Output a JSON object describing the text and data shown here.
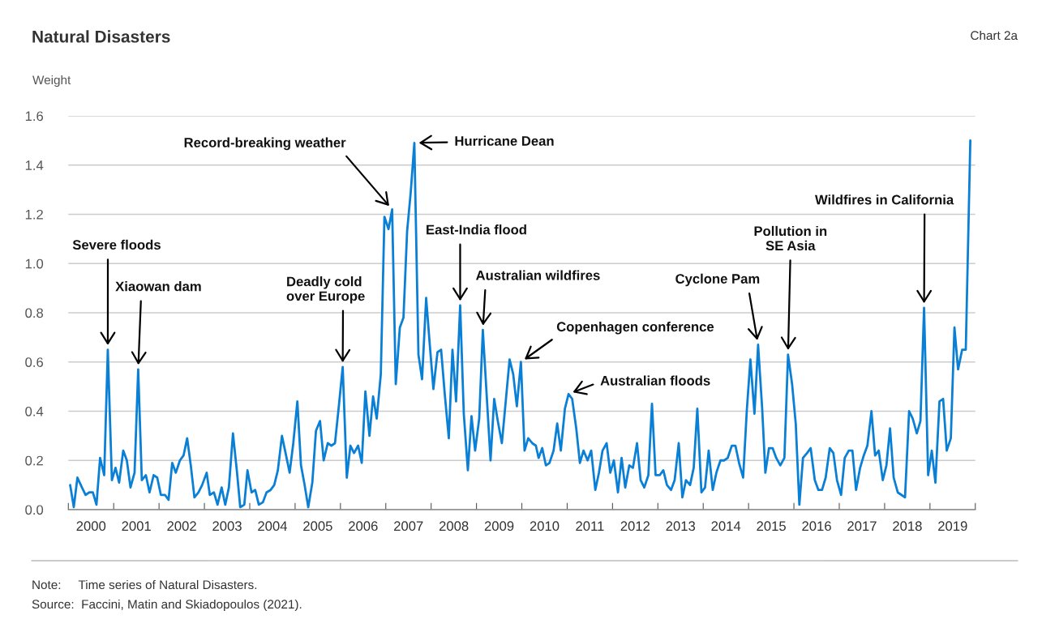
{
  "chart_data": {
    "type": "line",
    "title": "Natural Disasters",
    "subtitle": "Chart 2a",
    "ylabel": "Weight",
    "x": [
      2000.04,
      2000.12,
      2000.2,
      2000.3,
      2000.38,
      2000.46,
      2000.54,
      2000.62,
      2000.7,
      2000.79,
      2000.87,
      2000.96,
      2001.04,
      2001.12,
      2001.21,
      2001.29,
      2001.37,
      2001.46,
      2001.54,
      2001.62,
      2001.71,
      2001.79,
      2001.88,
      2001.96,
      2002.04,
      2002.13,
      2002.21,
      2002.29,
      2002.37,
      2002.46,
      2002.54,
      2002.62,
      2002.7,
      2002.78,
      2002.87,
      2002.95,
      2003.05,
      2003.12,
      2003.21,
      2003.29,
      2003.38,
      2003.46,
      2003.54,
      2003.63,
      2003.72,
      2003.79,
      2003.88,
      2003.95,
      2004.04,
      2004.12,
      2004.2,
      2004.29,
      2004.37,
      2004.46,
      2004.54,
      2004.62,
      2004.71,
      2004.79,
      2004.88,
      2004.96,
      2005.05,
      2005.13,
      2005.21,
      2005.29,
      2005.38,
      2005.46,
      2005.55,
      2005.63,
      2005.72,
      2005.8,
      2005.88,
      2005.97,
      2006.05,
      2006.14,
      2006.22,
      2006.3,
      2006.39,
      2006.47,
      2006.55,
      2006.64,
      2006.72,
      2006.8,
      2006.89,
      2006.97,
      2007.06,
      2007.14,
      2007.22,
      2007.31,
      2007.39,
      2007.47,
      2007.55,
      2007.63,
      2007.72,
      2007.8,
      2007.89,
      2007.97,
      2008.05,
      2008.14,
      2008.22,
      2008.3,
      2008.39,
      2008.47,
      2008.55,
      2008.64,
      2008.72,
      2008.81,
      2008.89,
      2008.97,
      2009.06,
      2009.14,
      2009.22,
      2009.31,
      2009.39,
      2009.47,
      2009.56,
      2009.64,
      2009.73,
      2009.81,
      2009.89,
      2009.98,
      2010.06,
      2010.14,
      2010.23,
      2010.31,
      2010.37,
      2010.45,
      2010.53,
      2010.61,
      2010.7,
      2010.78,
      2010.86,
      2010.95,
      2011.03,
      2011.11,
      2011.2,
      2011.28,
      2011.36,
      2011.45,
      2011.53,
      2011.62,
      2011.7,
      2011.78,
      2011.87,
      2011.95,
      2012.03,
      2012.12,
      2012.2,
      2012.28,
      2012.37,
      2012.45,
      2012.54,
      2012.62,
      2012.7,
      2012.79,
      2012.87,
      2012.95,
      2013.04,
      2013.12,
      2013.2,
      2013.29,
      2013.37,
      2013.46,
      2013.54,
      2013.62,
      2013.71,
      2013.79,
      2013.87,
      2013.96,
      2014.04,
      2014.12,
      2014.21,
      2014.29,
      2014.38,
      2014.46,
      2014.54,
      2014.63,
      2014.71,
      2014.79,
      2014.88,
      2014.96,
      2015.04,
      2015.13,
      2015.21,
      2015.3,
      2015.37,
      2015.45,
      2015.53,
      2015.61,
      2015.7,
      2015.79,
      2015.87,
      2015.96,
      2016.04,
      2016.12,
      2016.2,
      2016.29,
      2016.37,
      2016.46,
      2016.54,
      2016.62,
      2016.7,
      2016.79,
      2016.87,
      2016.95,
      2017.04,
      2017.12,
      2017.21,
      2017.29,
      2017.37,
      2017.46,
      2017.54,
      2017.62,
      2017.71,
      2017.79,
      2017.87,
      2017.96,
      2018.04,
      2018.12,
      2018.2,
      2018.29,
      2018.37,
      2018.45,
      2018.54,
      2018.62,
      2018.71,
      2018.79,
      2018.87,
      2018.96,
      2019.04,
      2019.12,
      2019.21,
      2019.29,
      2019.37,
      2019.46,
      2019.54,
      2019.62,
      2019.71,
      2019.79,
      2019.89
    ],
    "series": [
      {
        "color": "#0a7fd6",
        "values": [
          0.1,
          0.01,
          0.13,
          0.09,
          0.06,
          0.07,
          0.07,
          0.02,
          0.21,
          0.14,
          0.65,
          0.12,
          0.17,
          0.11,
          0.24,
          0.2,
          0.09,
          0.15,
          0.57,
          0.12,
          0.14,
          0.07,
          0.14,
          0.13,
          0.06,
          0.06,
          0.04,
          0.19,
          0.15,
          0.2,
          0.22,
          0.29,
          0.18,
          0.05,
          0.07,
          0.1,
          0.15,
          0.06,
          0.07,
          0.02,
          0.09,
          0.02,
          0.09,
          0.31,
          0.15,
          0.01,
          0.02,
          0.16,
          0.07,
          0.08,
          0.02,
          0.03,
          0.07,
          0.08,
          0.1,
          0.16,
          0.3,
          0.23,
          0.15,
          0.27,
          0.44,
          0.18,
          0.1,
          0.01,
          0.11,
          0.32,
          0.36,
          0.2,
          0.27,
          0.26,
          0.27,
          0.43,
          0.58,
          0.13,
          0.26,
          0.23,
          0.26,
          0.19,
          0.48,
          0.3,
          0.46,
          0.37,
          0.55,
          1.19,
          1.14,
          1.22,
          0.51,
          0.74,
          0.78,
          1.13,
          1.29,
          1.49,
          0.63,
          0.53,
          0.86,
          0.67,
          0.49,
          0.64,
          0.65,
          0.47,
          0.29,
          0.65,
          0.44,
          0.83,
          0.39,
          0.16,
          0.38,
          0.24,
          0.37,
          0.73,
          0.48,
          0.2,
          0.45,
          0.36,
          0.27,
          0.43,
          0.61,
          0.55,
          0.42,
          0.6,
          0.24,
          0.29,
          0.27,
          0.26,
          0.21,
          0.25,
          0.18,
          0.19,
          0.24,
          0.35,
          0.24,
          0.41,
          0.47,
          0.45,
          0.33,
          0.19,
          0.24,
          0.2,
          0.24,
          0.08,
          0.15,
          0.24,
          0.27,
          0.15,
          0.2,
          0.07,
          0.21,
          0.09,
          0.18,
          0.17,
          0.27,
          0.12,
          0.09,
          0.14,
          0.43,
          0.14,
          0.14,
          0.16,
          0.1,
          0.08,
          0.12,
          0.27,
          0.05,
          0.12,
          0.1,
          0.17,
          0.41,
          0.07,
          0.09,
          0.24,
          0.08,
          0.15,
          0.2,
          0.2,
          0.21,
          0.26,
          0.26,
          0.19,
          0.13,
          0.4,
          0.61,
          0.39,
          0.67,
          0.41,
          0.15,
          0.25,
          0.25,
          0.21,
          0.18,
          0.21,
          0.63,
          0.51,
          0.35,
          0.02,
          0.21,
          0.23,
          0.25,
          0.12,
          0.08,
          0.08,
          0.13,
          0.25,
          0.23,
          0.12,
          0.06,
          0.21,
          0.24,
          0.24,
          0.08,
          0.17,
          0.22,
          0.26,
          0.4,
          0.22,
          0.24,
          0.12,
          0.18,
          0.33,
          0.13,
          0.07,
          0.06,
          0.05,
          0.4,
          0.37,
          0.31,
          0.36,
          0.82,
          0.14,
          0.24,
          0.11,
          0.44,
          0.45,
          0.24,
          0.29,
          0.74,
          0.57,
          0.65,
          0.65,
          1.5
        ]
      }
    ],
    "xlim": [
      2000,
      2020
    ],
    "xticks": [
      {
        "value": 2000,
        "label": null
      },
      {
        "value": 2000.5,
        "label": "2000"
      },
      {
        "value": 2001,
        "label": null
      },
      {
        "value": 2001.5,
        "label": "2001"
      },
      {
        "value": 2002,
        "label": null
      },
      {
        "value": 2002.5,
        "label": "2002"
      },
      {
        "value": 2003,
        "label": null
      },
      {
        "value": 2003.5,
        "label": "2003"
      },
      {
        "value": 2004,
        "label": null
      },
      {
        "value": 2004.5,
        "label": "2004"
      },
      {
        "value": 2005,
        "label": null
      },
      {
        "value": 2005.5,
        "label": "2005"
      },
      {
        "value": 2006,
        "label": null
      },
      {
        "value": 2006.5,
        "label": "2006"
      },
      {
        "value": 2007,
        "label": null
      },
      {
        "value": 2007.5,
        "label": "2007"
      },
      {
        "value": 2008,
        "label": null
      },
      {
        "value": 2008.5,
        "label": "2008"
      },
      {
        "value": 2009,
        "label": null
      },
      {
        "value": 2009.5,
        "label": "2009"
      },
      {
        "value": 2010,
        "label": null
      },
      {
        "value": 2010.5,
        "label": "2010"
      },
      {
        "value": 2011,
        "label": null
      },
      {
        "value": 2011.5,
        "label": "2011"
      },
      {
        "value": 2012,
        "label": null
      },
      {
        "value": 2012.5,
        "label": "2012"
      },
      {
        "value": 2013,
        "label": null
      },
      {
        "value": 2013.5,
        "label": "2013"
      },
      {
        "value": 2014,
        "label": null
      },
      {
        "value": 2014.5,
        "label": "2014"
      },
      {
        "value": 2015,
        "label": null
      },
      {
        "value": 2015.5,
        "label": "2015"
      },
      {
        "value": 2016,
        "label": null
      },
      {
        "value": 2016.5,
        "label": "2016"
      },
      {
        "value": 2017,
        "label": null
      },
      {
        "value": 2017.5,
        "label": "2017"
      },
      {
        "value": 2018,
        "label": null
      },
      {
        "value": 2018.5,
        "label": "2018"
      },
      {
        "value": 2019,
        "label": null
      },
      {
        "value": 2019.5,
        "label": "2019"
      },
      {
        "value": 2020,
        "label": null
      }
    ],
    "ylim": [
      0,
      1.6
    ],
    "yticks": [
      {
        "value": 0,
        "label": "0.0"
      },
      0.2,
      0.4,
      0.6,
      0.8,
      {
        "value": 1,
        "label": "1.0"
      },
      1.2,
      1.4,
      1.6
    ],
    "grid": "y",
    "annotations": [
      {
        "text": "Severe floods",
        "x": 2000.87,
        "y": 0.65
      },
      {
        "text": "Xiaowan dam",
        "x": 2001.54,
        "y": 0.57
      },
      {
        "text": "Deadly cold\nover Europe",
        "x": 2006.05,
        "y": 0.58
      },
      {
        "text": "Record-breaking weather",
        "x": 2007.14,
        "y": 1.22
      },
      {
        "text": "Hurricane Dean",
        "x": 2007.63,
        "y": 1.49
      },
      {
        "text": "East-India flood",
        "x": 2008.64,
        "y": 0.83
      },
      {
        "text": "Australian wildfires",
        "x": 2009.14,
        "y": 0.73
      },
      {
        "text": "Copenhagen conference",
        "x": 2009.98,
        "y": 0.6
      },
      {
        "text": "Australian floods",
        "x": 2011.03,
        "y": 0.47
      },
      {
        "text": "Cyclone Pam",
        "x": 2015.21,
        "y": 0.67
      },
      {
        "text": "Pollution in\nSE Asia",
        "x": 2015.87,
        "y": 0.63
      },
      {
        "text": "Wildfires in California",
        "x": 2018.87,
        "y": 0.82
      },
      "Note:     Time series of Natural Disasters.",
      "Source:  Faccini, Matin and Skiadopoulos (2021)."
    ]
  }
}
